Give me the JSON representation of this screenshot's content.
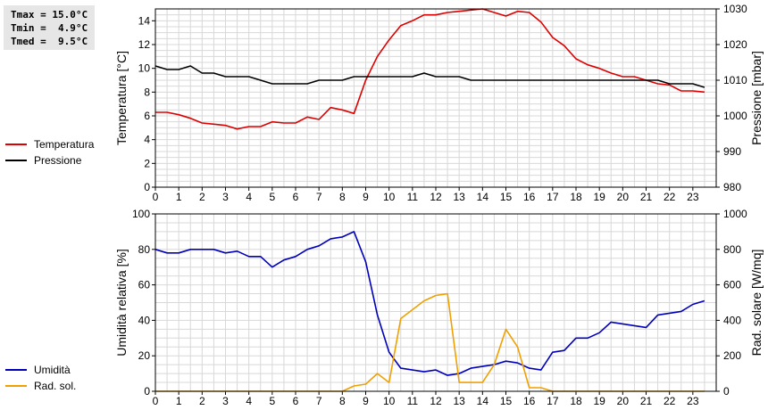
{
  "stats": {
    "tmax": "Tmax = 15.0°C",
    "tmin": "Tmin =  4.9°C",
    "tmed": "Tmed =  9.5°C"
  },
  "chart_data": [
    {
      "type": "line",
      "legend": {
        "placement": "left"
      },
      "grid": true,
      "xlim": [
        0,
        24
      ],
      "x_ticks": [
        "0",
        "1",
        "2",
        "3",
        "4",
        "5",
        "6",
        "7",
        "8",
        "9",
        "10",
        "11",
        "12",
        "13",
        "14",
        "15",
        "16",
        "17",
        "18",
        "19",
        "20",
        "21",
        "22",
        "23"
      ],
      "y_left": {
        "label": "Temperatura [°C]",
        "range": [
          0,
          15
        ],
        "ticks": [
          "0",
          "2",
          "4",
          "6",
          "8",
          "10",
          "12",
          "14"
        ]
      },
      "y_right": {
        "label": "Pressione [mbar]",
        "range": [
          980,
          1030
        ],
        "ticks": [
          "980",
          "990",
          "1000",
          "1010",
          "1020",
          "1030"
        ]
      },
      "series": [
        {
          "name": "Temperatura",
          "color": "#dd0000",
          "axis": "left",
          "x": [
            0,
            0.5,
            1,
            1.5,
            2,
            2.5,
            3,
            3.5,
            4,
            4.5,
            5,
            5.5,
            6,
            6.5,
            7,
            7.5,
            8,
            8.5,
            9,
            9.5,
            10,
            10.5,
            11,
            11.5,
            12,
            12.5,
            13,
            13.5,
            14,
            14.5,
            15,
            15.5,
            16,
            16.5,
            17,
            17.5,
            18,
            18.5,
            19,
            19.5,
            20,
            20.5,
            21,
            21.5,
            22,
            22.5,
            23,
            23.5
          ],
          "y": [
            6.3,
            6.3,
            6.1,
            5.8,
            5.4,
            5.3,
            5.2,
            4.9,
            5.1,
            5.1,
            5.5,
            5.4,
            5.4,
            5.9,
            5.7,
            6.7,
            6.5,
            6.2,
            9.0,
            11.0,
            12.4,
            13.6,
            14.0,
            14.5,
            14.5,
            14.7,
            14.8,
            14.9,
            15.0,
            14.7,
            14.4,
            14.8,
            14.7,
            13.9,
            12.6,
            11.9,
            10.8,
            10.3,
            10.0,
            9.6,
            9.3,
            9.3,
            9.0,
            8.7,
            8.6,
            8.1,
            8.1,
            8.0
          ]
        },
        {
          "name": "Pressione",
          "color": "#000000",
          "axis": "right",
          "x": [
            0,
            0.5,
            1,
            1.5,
            2,
            2.5,
            3,
            3.5,
            4,
            4.5,
            5,
            5.5,
            6,
            6.5,
            7,
            7.5,
            8,
            8.5,
            9,
            9.5,
            10,
            10.5,
            11,
            11.5,
            12,
            12.5,
            13,
            13.5,
            14,
            14.5,
            15,
            15.5,
            16,
            16.5,
            17,
            17.5,
            18,
            18.5,
            19,
            19.5,
            20,
            20.5,
            21,
            21.5,
            22,
            22.5,
            23,
            23.5
          ],
          "y": [
            1014,
            1013,
            1013,
            1014,
            1012,
            1012,
            1011,
            1011,
            1011,
            1010,
            1009,
            1009,
            1009,
            1009,
            1010,
            1010,
            1010,
            1011,
            1011,
            1011,
            1011,
            1011,
            1011,
            1012,
            1011,
            1011,
            1011,
            1010,
            1010,
            1010,
            1010,
            1010,
            1010,
            1010,
            1010,
            1010,
            1010,
            1010,
            1010,
            1010,
            1010,
            1010,
            1010,
            1010,
            1009,
            1009,
            1009,
            1008
          ]
        }
      ]
    },
    {
      "type": "line",
      "legend": {
        "placement": "left"
      },
      "grid": true,
      "xlim": [
        0,
        24
      ],
      "x_ticks": [
        "0",
        "1",
        "2",
        "3",
        "4",
        "5",
        "6",
        "7",
        "8",
        "9",
        "10",
        "11",
        "12",
        "13",
        "14",
        "15",
        "16",
        "17",
        "18",
        "19",
        "20",
        "21",
        "22",
        "23"
      ],
      "y_left": {
        "label": "Umidità relativa [%]",
        "range": [
          0,
          100
        ],
        "ticks": [
          "0",
          "20",
          "40",
          "60",
          "80",
          "100"
        ]
      },
      "y_right": {
        "label": "Rad. solare [W/mq]",
        "range": [
          0,
          1000
        ],
        "ticks": [
          "0",
          "200",
          "400",
          "600",
          "800",
          "1000"
        ]
      },
      "series": [
        {
          "name": "Umidità",
          "color": "#0000bb",
          "axis": "left",
          "x": [
            0,
            0.5,
            1,
            1.5,
            2,
            2.5,
            3,
            3.5,
            4,
            4.5,
            5,
            5.5,
            6,
            6.5,
            7,
            7.5,
            8,
            8.5,
            9,
            9.5,
            10,
            10.5,
            11,
            11.5,
            12,
            12.5,
            13,
            13.5,
            14,
            14.5,
            15,
            15.5,
            16,
            16.5,
            17,
            17.5,
            18,
            18.5,
            19,
            19.5,
            20,
            20.5,
            21,
            21.5,
            22,
            22.5,
            23,
            23.5
          ],
          "y": [
            80,
            78,
            78,
            80,
            80,
            80,
            78,
            79,
            76,
            76,
            70,
            74,
            76,
            80,
            82,
            86,
            87,
            90,
            73,
            43,
            22,
            13,
            12,
            11,
            12,
            9,
            10,
            13,
            14,
            15,
            17,
            16,
            13,
            12,
            22,
            23,
            30,
            30,
            33,
            39,
            38,
            37,
            36,
            43,
            44,
            45,
            49,
            51
          ]
        },
        {
          "name": "Rad. sol.",
          "color": "#f0a000",
          "axis": "right",
          "x": [
            0,
            0.5,
            1,
            1.5,
            2,
            2.5,
            3,
            3.5,
            4,
            4.5,
            5,
            5.5,
            6,
            6.5,
            7,
            7.5,
            8,
            8.5,
            9,
            9.5,
            10,
            10.5,
            11,
            11.5,
            12,
            12.5,
            13,
            13.5,
            14,
            14.5,
            15,
            15.5,
            16,
            16.5,
            17,
            17.5,
            18,
            18.5,
            19,
            19.5,
            20,
            20.5,
            21,
            21.5,
            22,
            22.5,
            23,
            23.5
          ],
          "y": [
            0,
            0,
            0,
            0,
            0,
            0,
            0,
            0,
            0,
            0,
            0,
            0,
            0,
            0,
            0,
            0,
            0,
            30,
            40,
            100,
            50,
            410,
            460,
            510,
            540,
            550,
            50,
            50,
            50,
            150,
            350,
            250,
            20,
            20,
            0,
            0,
            0,
            0,
            0,
            0,
            0,
            0,
            0,
            0,
            0,
            0,
            0,
            0
          ]
        }
      ]
    }
  ]
}
